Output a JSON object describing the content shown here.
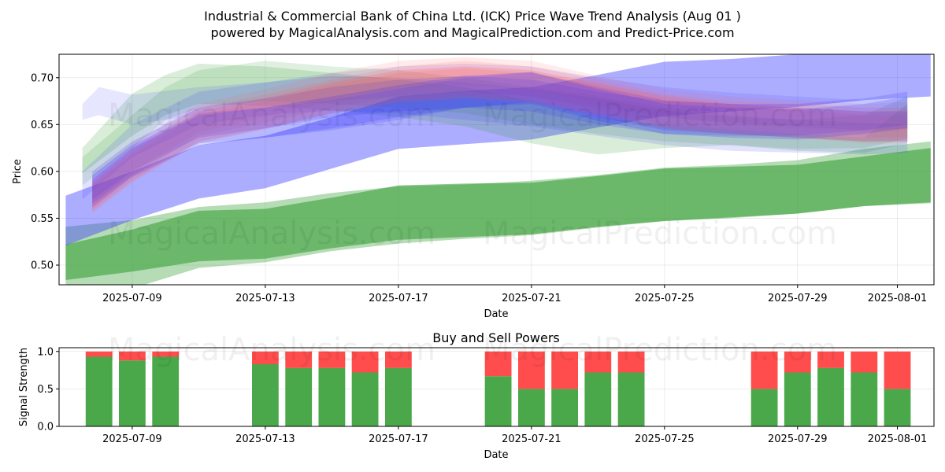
{
  "title_line1": "Industrial & Commercial Bank of China Ltd. (ICK) Price Wave Trend Analysis (Aug 01 )",
  "title_line2": "powered by MagicalAnalysis.com and MagicalPrediction.com and Predict-Price.com",
  "watermarks": [
    "MagicalAnalysis.com",
    "MagicalPrediction.com"
  ],
  "colors": {
    "green": "#2e9a2e",
    "blue": "#3333ff",
    "red": "#ff5c5c",
    "red_bar": "#ff4d4d",
    "green_bar": "#4aa84a"
  },
  "chart_data": [
    {
      "type": "area",
      "title": "",
      "xlabel": "Date",
      "ylabel": "Price",
      "x_range_days": [
        -2.2,
        24.1
      ],
      "ylim": [
        0.479,
        0.725
      ],
      "grid": true,
      "y_ticks": [
        0.5,
        0.55,
        0.6,
        0.65,
        0.7
      ],
      "x_ticks": [
        {
          "day": 0,
          "label": "2025-07-09"
        },
        {
          "day": 4,
          "label": "2025-07-13"
        },
        {
          "day": 8,
          "label": "2025-07-17"
        },
        {
          "day": 12,
          "label": "2025-07-21"
        },
        {
          "day": 16,
          "label": "2025-07-25"
        },
        {
          "day": 20,
          "label": "2025-07-29"
        },
        {
          "day": 23,
          "label": "2025-08-01"
        }
      ],
      "series": [
        {
          "name": "green-band-outer",
          "color": "green",
          "opacity": 0.35,
          "x": [
            -2,
            0,
            2,
            4,
            6,
            8,
            10,
            12,
            14,
            16,
            18,
            20,
            22,
            24
          ],
          "upper": [
            0.541,
            0.548,
            0.562,
            0.567,
            0.577,
            0.584,
            0.586,
            0.59,
            0.596,
            0.604,
            0.607,
            0.612,
            0.624,
            0.632
          ],
          "lower": [
            0.469,
            0.475,
            0.497,
            0.503,
            0.515,
            0.523,
            0.528,
            0.532,
            0.54,
            0.547,
            0.55,
            0.555,
            0.563,
            0.566
          ]
        },
        {
          "name": "green-band-inner",
          "color": "green",
          "opacity": 0.55,
          "x": [
            -2,
            0,
            2,
            4,
            6,
            8,
            10,
            12,
            14,
            16,
            18,
            20,
            22,
            24
          ],
          "upper": [
            0.522,
            0.538,
            0.558,
            0.56,
            0.572,
            0.585,
            0.587,
            0.588,
            0.595,
            0.603,
            0.605,
            0.607,
            0.616,
            0.625
          ],
          "lower": [
            0.484,
            0.493,
            0.504,
            0.507,
            0.518,
            0.527,
            0.53,
            0.533,
            0.541,
            0.547,
            0.551,
            0.555,
            0.563,
            0.567
          ]
        },
        {
          "name": "blue-band-main",
          "color": "blue",
          "opacity": 0.4,
          "x": [
            -2,
            0,
            2,
            4,
            6,
            8,
            10,
            12,
            14,
            16,
            18,
            20,
            22,
            24
          ],
          "upper": [
            0.574,
            0.6,
            0.628,
            0.638,
            0.658,
            0.68,
            0.686,
            0.69,
            0.703,
            0.717,
            0.72,
            0.725,
            0.727,
            0.728
          ],
          "lower": [
            0.521,
            0.548,
            0.571,
            0.582,
            0.603,
            0.624,
            0.629,
            0.634,
            0.647,
            0.659,
            0.664,
            0.669,
            0.676,
            0.68
          ]
        },
        {
          "name": "green-light-1",
          "color": "green",
          "opacity": 0.18,
          "x": [
            -1.5,
            0,
            1,
            2,
            4,
            6,
            8,
            10,
            12,
            14,
            16,
            18,
            20,
            22,
            23.3
          ],
          "upper": [
            0.625,
            0.683,
            0.703,
            0.715,
            0.712,
            0.705,
            0.698,
            0.69,
            0.675,
            0.658,
            0.65,
            0.645,
            0.64,
            0.636,
            0.672
          ],
          "lower": [
            0.598,
            0.638,
            0.66,
            0.672,
            0.67,
            0.665,
            0.658,
            0.648,
            0.63,
            0.618,
            0.625,
            0.628,
            0.622,
            0.62,
            0.63
          ]
        },
        {
          "name": "green-light-2",
          "color": "green",
          "opacity": 0.15,
          "x": [
            -1.5,
            0,
            1,
            2,
            4,
            6,
            8,
            10,
            12,
            14,
            16,
            18,
            20,
            22,
            23.3
          ],
          "upper": [
            0.615,
            0.66,
            0.69,
            0.708,
            0.718,
            0.712,
            0.708,
            0.7,
            0.69,
            0.68,
            0.668,
            0.66,
            0.655,
            0.66,
            0.68
          ],
          "lower": [
            0.585,
            0.625,
            0.655,
            0.668,
            0.675,
            0.672,
            0.668,
            0.662,
            0.65,
            0.64,
            0.632,
            0.628,
            0.624,
            0.625,
            0.635
          ]
        },
        {
          "name": "blue-light-1",
          "color": "blue",
          "opacity": 0.12,
          "x": [
            -1.5,
            -1,
            0,
            2,
            4,
            6,
            8,
            10,
            12,
            14,
            16,
            18,
            20,
            22,
            23.3
          ],
          "upper": [
            0.672,
            0.69,
            0.682,
            0.69,
            0.695,
            0.705,
            0.712,
            0.715,
            0.712,
            0.7,
            0.69,
            0.684,
            0.68,
            0.676,
            0.678
          ],
          "lower": [
            0.655,
            0.66,
            0.65,
            0.66,
            0.668,
            0.675,
            0.68,
            0.685,
            0.68,
            0.668,
            0.658,
            0.652,
            0.648,
            0.644,
            0.646
          ]
        },
        {
          "name": "blue-light-2",
          "color": "blue",
          "opacity": 0.14,
          "x": [
            -1.5,
            0,
            2,
            4,
            6,
            8,
            10,
            12,
            14,
            16,
            18,
            20,
            22,
            23.3
          ],
          "upper": [
            0.6,
            0.65,
            0.685,
            0.695,
            0.702,
            0.7,
            0.695,
            0.688,
            0.678,
            0.665,
            0.658,
            0.655,
            0.652,
            0.65
          ],
          "lower": [
            0.57,
            0.615,
            0.65,
            0.66,
            0.665,
            0.662,
            0.655,
            0.648,
            0.638,
            0.628,
            0.622,
            0.62,
            0.618,
            0.62
          ]
        },
        {
          "name": "red-light-1",
          "color": "red",
          "opacity": 0.15,
          "x": [
            -1.2,
            0,
            2,
            4,
            6,
            8,
            10,
            12,
            14,
            16,
            18,
            20,
            22,
            23.3
          ],
          "upper": [
            0.59,
            0.625,
            0.668,
            0.682,
            0.698,
            0.712,
            0.718,
            0.712,
            0.698,
            0.682,
            0.675,
            0.672,
            0.668,
            0.668
          ],
          "lower": [
            0.56,
            0.595,
            0.638,
            0.652,
            0.668,
            0.68,
            0.685,
            0.68,
            0.665,
            0.65,
            0.645,
            0.64,
            0.636,
            0.636
          ]
        },
        {
          "name": "red-light-2",
          "color": "red",
          "opacity": 0.15,
          "x": [
            -1.2,
            0,
            2,
            4,
            6,
            8,
            10,
            12,
            14,
            16,
            18,
            20,
            22,
            23.3
          ],
          "upper": [
            0.585,
            0.618,
            0.66,
            0.675,
            0.692,
            0.705,
            0.71,
            0.705,
            0.692,
            0.676,
            0.67,
            0.666,
            0.66,
            0.66
          ],
          "lower": [
            0.555,
            0.588,
            0.63,
            0.645,
            0.662,
            0.674,
            0.68,
            0.675,
            0.66,
            0.646,
            0.64,
            0.636,
            0.63,
            0.63
          ]
        },
        {
          "name": "red-light-3",
          "color": "red",
          "opacity": 0.12,
          "x": [
            -1.2,
            0,
            2,
            4,
            6,
            8,
            10,
            12,
            14,
            16,
            18,
            20,
            22,
            23.3
          ],
          "upper": [
            0.595,
            0.63,
            0.672,
            0.688,
            0.705,
            0.718,
            0.722,
            0.718,
            0.702,
            0.688,
            0.68,
            0.676,
            0.672,
            0.674
          ],
          "lower": [
            0.565,
            0.6,
            0.642,
            0.658,
            0.675,
            0.688,
            0.692,
            0.688,
            0.672,
            0.658,
            0.65,
            0.646,
            0.642,
            0.644
          ]
        },
        {
          "name": "blue-mid-1",
          "color": "blue",
          "opacity": 0.18,
          "x": [
            -1.2,
            0,
            2,
            4,
            6,
            8,
            10,
            12,
            14,
            16,
            18,
            20,
            22,
            23.3
          ],
          "upper": [
            0.6,
            0.632,
            0.668,
            0.678,
            0.69,
            0.698,
            0.702,
            0.698,
            0.685,
            0.675,
            0.672,
            0.672,
            0.678,
            0.685
          ],
          "lower": [
            0.57,
            0.6,
            0.636,
            0.646,
            0.658,
            0.664,
            0.668,
            0.664,
            0.65,
            0.64,
            0.638,
            0.638,
            0.644,
            0.65
          ]
        },
        {
          "name": "blue-mid-2",
          "color": "blue",
          "opacity": 0.18,
          "x": [
            -1.2,
            0,
            2,
            4,
            6,
            8,
            10,
            12,
            14,
            16,
            18,
            20,
            22,
            23.3
          ],
          "upper": [
            0.596,
            0.628,
            0.662,
            0.668,
            0.676,
            0.688,
            0.7,
            0.706,
            0.69,
            0.676,
            0.672,
            0.668,
            0.664,
            0.664
          ],
          "lower": [
            0.566,
            0.596,
            0.63,
            0.636,
            0.644,
            0.655,
            0.668,
            0.674,
            0.658,
            0.644,
            0.64,
            0.636,
            0.632,
            0.632
          ]
        },
        {
          "name": "red-mid-1",
          "color": "red",
          "opacity": 0.22,
          "x": [
            -1.2,
            0,
            2,
            4,
            6,
            8,
            10,
            12,
            14,
            16,
            18,
            20,
            22,
            23.3
          ],
          "upper": [
            0.588,
            0.622,
            0.664,
            0.678,
            0.695,
            0.708,
            0.712,
            0.708,
            0.694,
            0.68,
            0.672,
            0.668,
            0.664,
            0.665
          ],
          "lower": [
            0.558,
            0.59,
            0.632,
            0.646,
            0.662,
            0.674,
            0.678,
            0.674,
            0.66,
            0.646,
            0.64,
            0.636,
            0.632,
            0.633
          ]
        },
        {
          "name": "blue-dark-1",
          "color": "blue",
          "opacity": 0.2,
          "x": [
            -1.2,
            0,
            2,
            4,
            6,
            8,
            10,
            12,
            14,
            16,
            18,
            20,
            22,
            23.3
          ],
          "upper": [
            0.592,
            0.625,
            0.66,
            0.668,
            0.68,
            0.692,
            0.702,
            0.706,
            0.688,
            0.672,
            0.668,
            0.666,
            0.672,
            0.68
          ],
          "lower": [
            0.562,
            0.594,
            0.628,
            0.636,
            0.646,
            0.658,
            0.668,
            0.672,
            0.654,
            0.64,
            0.636,
            0.634,
            0.64,
            0.646
          ]
        }
      ]
    },
    {
      "type": "bar",
      "title": "Buy and Sell Powers",
      "xlabel": "Date",
      "ylabel": "Signal Strength",
      "ylim": [
        0,
        1.05
      ],
      "y_ticks": [
        0.0,
        0.5,
        1.0
      ],
      "x_ticks": [
        {
          "day": 0,
          "label": "2025-07-09"
        },
        {
          "day": 4,
          "label": "2025-07-13"
        },
        {
          "day": 8,
          "label": "2025-07-17"
        },
        {
          "day": 12,
          "label": "2025-07-21"
        },
        {
          "day": 16,
          "label": "2025-07-25"
        },
        {
          "day": 20,
          "label": "2025-07-29"
        },
        {
          "day": 23,
          "label": "2025-08-01"
        }
      ],
      "series": [
        {
          "name": "Buy",
          "color": "green_bar",
          "days": [
            -1,
            0,
            1,
            4,
            5,
            6,
            7,
            8,
            11,
            12,
            13,
            14,
            15,
            19,
            20,
            21,
            22,
            23
          ],
          "values": [
            0.93,
            0.88,
            0.93,
            0.83,
            0.78,
            0.78,
            0.72,
            0.78,
            0.67,
            0.5,
            0.5,
            0.72,
            0.72,
            0.5,
            0.72,
            0.78,
            0.72,
            0.5
          ]
        },
        {
          "name": "Sell",
          "color": "red_bar",
          "days": [
            -1,
            0,
            1,
            4,
            5,
            6,
            7,
            8,
            11,
            12,
            13,
            14,
            15,
            19,
            20,
            21,
            22,
            23
          ],
          "values": [
            0.07,
            0.12,
            0.07,
            0.17,
            0.22,
            0.22,
            0.28,
            0.22,
            0.33,
            0.5,
            0.5,
            0.28,
            0.28,
            0.5,
            0.28,
            0.22,
            0.28,
            0.5
          ]
        }
      ]
    }
  ]
}
